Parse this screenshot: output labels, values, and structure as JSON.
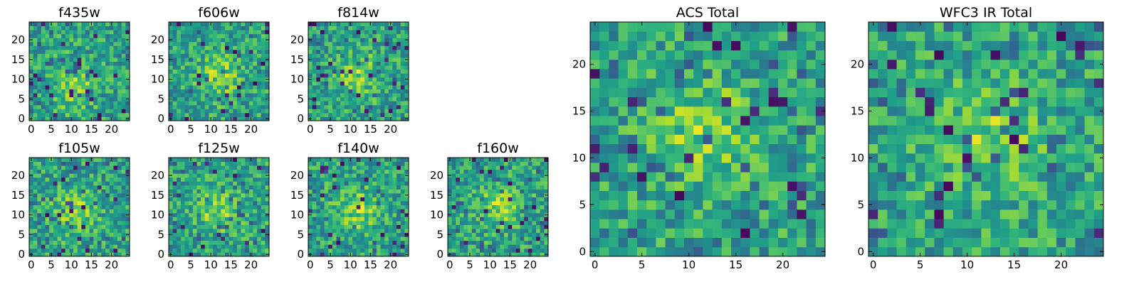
{
  "chart_data": [
    {
      "type": "heatmap",
      "title": "f435w",
      "colormap": "viridis",
      "grid_size": [
        25,
        25
      ],
      "xlim": [
        -0.5,
        24.5
      ],
      "ylim": [
        -0.5,
        24.5
      ],
      "xticks": [
        0,
        5,
        10,
        15,
        20
      ],
      "yticks": [
        0,
        5,
        10,
        15,
        20
      ],
      "xlabel": "",
      "ylabel": "",
      "grid": false,
      "value_range": [
        0,
        1
      ],
      "hot_center": [
        11,
        8
      ],
      "seed": 11
    },
    {
      "type": "heatmap",
      "title": "f606w",
      "colormap": "viridis",
      "grid_size": [
        25,
        25
      ],
      "xlim": [
        -0.5,
        24.5
      ],
      "ylim": [
        -0.5,
        24.5
      ],
      "xticks": [
        0,
        5,
        10,
        15,
        20
      ],
      "yticks": [
        0,
        5,
        10,
        15,
        20
      ],
      "xlabel": "",
      "ylabel": "",
      "grid": false,
      "value_range": [
        0,
        1
      ],
      "hot_center": [
        12,
        11
      ],
      "seed": 23
    },
    {
      "type": "heatmap",
      "title": "f814w",
      "colormap": "viridis",
      "grid_size": [
        25,
        25
      ],
      "xlim": [
        -0.5,
        24.5
      ],
      "ylim": [
        -0.5,
        24.5
      ],
      "xticks": [
        0,
        5,
        10,
        15,
        20
      ],
      "yticks": [
        0,
        5,
        10,
        15,
        20
      ],
      "xlabel": "",
      "ylabel": "",
      "grid": false,
      "value_range": [
        0,
        1
      ],
      "hot_center": [
        12,
        11
      ],
      "seed": 37
    },
    {
      "type": "heatmap",
      "title": "f105w",
      "colormap": "viridis",
      "grid_size": [
        25,
        25
      ],
      "xlim": [
        -0.5,
        24.5
      ],
      "ylim": [
        -0.5,
        24.5
      ],
      "xticks": [
        0,
        5,
        10,
        15,
        20
      ],
      "yticks": [
        0,
        5,
        10,
        15,
        20
      ],
      "xlabel": "",
      "ylabel": "",
      "grid": false,
      "value_range": [
        0,
        1
      ],
      "hot_center": [
        11,
        11
      ],
      "seed": 41
    },
    {
      "type": "heatmap",
      "title": "f125w",
      "colormap": "viridis",
      "grid_size": [
        25,
        25
      ],
      "xlim": [
        -0.5,
        24.5
      ],
      "ylim": [
        -0.5,
        24.5
      ],
      "xticks": [
        0,
        5,
        10,
        15,
        20
      ],
      "yticks": [
        0,
        5,
        10,
        15,
        20
      ],
      "xlabel": "",
      "ylabel": "",
      "grid": false,
      "value_range": [
        0,
        1
      ],
      "hot_center": [
        12,
        11
      ],
      "seed": 53
    },
    {
      "type": "heatmap",
      "title": "f140w",
      "colormap": "viridis",
      "grid_size": [
        25,
        25
      ],
      "xlim": [
        -0.5,
        24.5
      ],
      "ylim": [
        -0.5,
        24.5
      ],
      "xticks": [
        0,
        5,
        10,
        15,
        20
      ],
      "yticks": [
        0,
        5,
        10,
        15,
        20
      ],
      "xlabel": "",
      "ylabel": "",
      "grid": false,
      "value_range": [
        0,
        1
      ],
      "hot_center": [
        12,
        11
      ],
      "seed": 67
    },
    {
      "type": "heatmap",
      "title": "f160w",
      "colormap": "viridis",
      "grid_size": [
        25,
        25
      ],
      "xlim": [
        -0.5,
        24.5
      ],
      "ylim": [
        -0.5,
        24.5
      ],
      "xticks": [
        0,
        5,
        10,
        15,
        20
      ],
      "yticks": [
        0,
        5,
        10,
        15,
        20
      ],
      "xlabel": "",
      "ylabel": "",
      "grid": false,
      "value_range": [
        0,
        1
      ],
      "hot_center": [
        12,
        12
      ],
      "seed": 79
    },
    {
      "type": "heatmap",
      "title": "ACS Total",
      "colormap": "viridis",
      "grid_size": [
        25,
        25
      ],
      "xlim": [
        -0.5,
        24.5
      ],
      "ylim": [
        -0.5,
        24.5
      ],
      "xticks": [
        0,
        5,
        10,
        15,
        20
      ],
      "yticks": [
        0,
        5,
        10,
        15,
        20
      ],
      "xlabel": "",
      "ylabel": "",
      "grid": false,
      "value_range": [
        0,
        1
      ],
      "hot_center": [
        12,
        13
      ],
      "seed": 83
    },
    {
      "type": "heatmap",
      "title": "WFC3 IR Total",
      "colormap": "viridis",
      "grid_size": [
        25,
        25
      ],
      "xlim": [
        -0.5,
        24.5
      ],
      "ylim": [
        -0.5,
        24.5
      ],
      "xticks": [
        0,
        5,
        10,
        15,
        20
      ],
      "yticks": [
        0,
        5,
        10,
        15,
        20
      ],
      "xlabel": "",
      "ylabel": "",
      "grid": false,
      "value_range": [
        0,
        1
      ],
      "hot_center": [
        12,
        12
      ],
      "seed": 97
    }
  ]
}
